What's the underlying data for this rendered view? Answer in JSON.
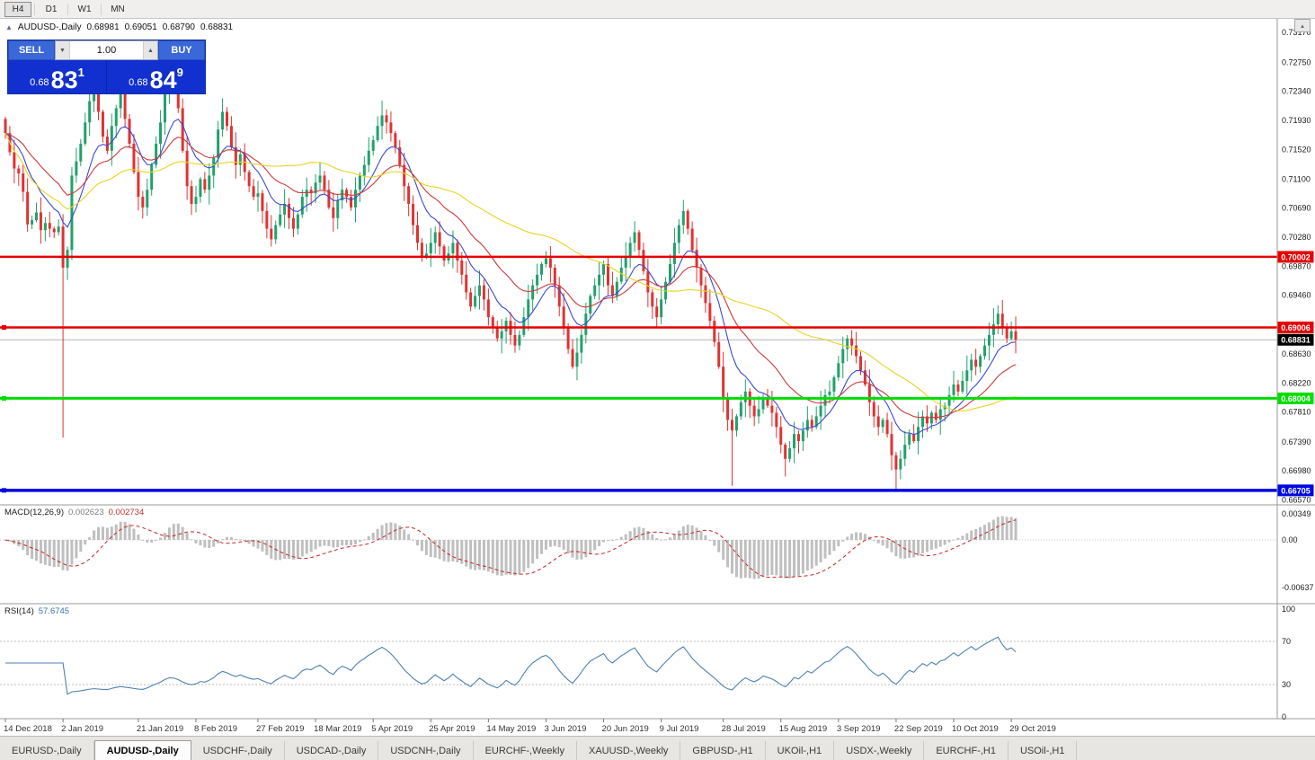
{
  "toolbar": {
    "buttons": [
      {
        "label": "H4",
        "active": true
      },
      {
        "label": "D1",
        "active": false
      },
      {
        "label": "W1",
        "active": false
      },
      {
        "label": "MN",
        "active": false
      }
    ]
  },
  "chart_header": {
    "collapse_icon": "▲",
    "symbol": "AUDUSD-,Daily",
    "open": "0.68981",
    "high": "0.69051",
    "low": "0.68790",
    "close": "0.68831"
  },
  "one_click": {
    "sell_label": "SELL",
    "buy_label": "BUY",
    "volume": "1.00",
    "down_icon": "▼",
    "up_icon": "▲",
    "sell_price_small": "0.68",
    "sell_price_big": "83",
    "sell_price_sup": "1",
    "buy_price_small": "0.68",
    "buy_price_big": "84",
    "buy_price_sup": "9"
  },
  "misc": {
    "mini_arrow": "▴"
  },
  "tabs": [
    {
      "label": "EURUSD-,Daily",
      "active": false
    },
    {
      "label": "AUDUSD-,Daily",
      "active": true
    },
    {
      "label": "USDCHF-,Daily",
      "active": false
    },
    {
      "label": "USDCAD-,Daily",
      "active": false
    },
    {
      "label": "USDCNH-,Daily",
      "active": false
    },
    {
      "label": "EURCHF-,Weekly",
      "active": false
    },
    {
      "label": "XAUUSD-,Weekly",
      "active": false
    },
    {
      "label": "GBPUSD-,H1",
      "active": false
    },
    {
      "label": "UKOil-,H1",
      "active": false
    },
    {
      "label": "USDX-,Weekly",
      "active": false
    },
    {
      "label": "EURCHF-,H1",
      "active": false
    },
    {
      "label": "USOil-,H1",
      "active": false
    }
  ],
  "chart_data": {
    "type": "candlestick",
    "symbol": "AUDUSD",
    "period": "Daily",
    "ylim": [
      0.665,
      0.7335
    ],
    "y_axis_labels": [
      "0.73170",
      "0.72750",
      "0.72340",
      "0.71930",
      "0.71520",
      "0.71100",
      "0.70690",
      "0.70280",
      "0.69870",
      "0.69460",
      "0.69040",
      "0.68630",
      "0.68220",
      "0.67810",
      "0.67390",
      "0.66980",
      "0.66570"
    ],
    "first_open": 0.7195,
    "closes": [
      0.7175,
      0.7148,
      0.7125,
      0.7118,
      0.7092,
      0.7046,
      0.7052,
      0.7063,
      0.7038,
      0.7048,
      0.704,
      0.7035,
      0.7043,
      0.6985,
      0.701,
      0.7115,
      0.7135,
      0.716,
      0.719,
      0.722,
      0.7235,
      0.7205,
      0.717,
      0.715,
      0.7185,
      0.721,
      0.723,
      0.7195,
      0.716,
      0.712,
      0.7085,
      0.707,
      0.7095,
      0.713,
      0.716,
      0.719,
      0.723,
      0.7255,
      0.725,
      0.721,
      0.715,
      0.71,
      0.7075,
      0.7085,
      0.711,
      0.7095,
      0.7115,
      0.714,
      0.718,
      0.7205,
      0.7185,
      0.7155,
      0.713,
      0.7145,
      0.712,
      0.71,
      0.7085,
      0.709,
      0.7065,
      0.704,
      0.7025,
      0.7045,
      0.706,
      0.7075,
      0.7055,
      0.704,
      0.706,
      0.7085,
      0.7095,
      0.709,
      0.7105,
      0.7115,
      0.7095,
      0.707,
      0.7055,
      0.708,
      0.7095,
      0.7085,
      0.707,
      0.7095,
      0.7115,
      0.713,
      0.715,
      0.7165,
      0.7185,
      0.72,
      0.719,
      0.7175,
      0.7155,
      0.713,
      0.71,
      0.7075,
      0.7045,
      0.702,
      0.7,
      0.7005,
      0.702,
      0.7035,
      0.7015,
      0.6995,
      0.7005,
      0.702,
      0.6995,
      0.6975,
      0.695,
      0.693,
      0.6945,
      0.696,
      0.694,
      0.6915,
      0.69,
      0.6885,
      0.6895,
      0.691,
      0.689,
      0.6875,
      0.689,
      0.6915,
      0.694,
      0.696,
      0.6975,
      0.699,
      0.6998,
      0.6985,
      0.696,
      0.693,
      0.69,
      0.687,
      0.6845,
      0.6865,
      0.689,
      0.692,
      0.6945,
      0.696,
      0.6975,
      0.699,
      0.696,
      0.6945,
      0.6965,
      0.6985,
      0.7,
      0.702,
      0.7035,
      0.701,
      0.698,
      0.695,
      0.693,
      0.6915,
      0.694,
      0.6965,
      0.699,
      0.702,
      0.7045,
      0.7065,
      0.704,
      0.701,
      0.6985,
      0.696,
      0.6935,
      0.691,
      0.688,
      0.6845,
      0.68,
      0.677,
      0.6755,
      0.6775,
      0.6795,
      0.681,
      0.679,
      0.6775,
      0.6785,
      0.68,
      0.679,
      0.678,
      0.676,
      0.6735,
      0.6715,
      0.673,
      0.675,
      0.674,
      0.6755,
      0.677,
      0.676,
      0.6775,
      0.679,
      0.6805,
      0.681,
      0.683,
      0.685,
      0.687,
      0.6885,
      0.6875,
      0.686,
      0.684,
      0.682,
      0.6795,
      0.6775,
      0.676,
      0.677,
      0.675,
      0.672,
      0.67,
      0.6715,
      0.6735,
      0.675,
      0.674,
      0.676,
      0.6775,
      0.6765,
      0.678,
      0.677,
      0.6785,
      0.679,
      0.6805,
      0.682,
      0.681,
      0.6825,
      0.684,
      0.6855,
      0.6845,
      0.686,
      0.6875,
      0.689,
      0.6905,
      0.692,
      0.69,
      0.6885,
      0.6895,
      0.68831
    ],
    "wick_overrides": {
      "13": {
        "low": 0.6745
      },
      "37": {
        "high": 0.7268
      },
      "164": {
        "low": 0.6677
      },
      "176": {
        "low": 0.669
      },
      "201": {
        "low": 0.667
      },
      "223": {
        "high": 0.6928
      }
    },
    "colors": {
      "up": "#22a06b",
      "down": "#e03232",
      "ma_fast": "#3a49cf",
      "ma_mid": "#cc3a3a",
      "ma_slow": "#e8d41e",
      "macd_hist": "#bfbfbf",
      "macd_signal": "#cc2222",
      "rsi": "#4f81b0"
    },
    "moving_averages": [
      {
        "type": "ema",
        "period": 10,
        "color_key": "ma_fast"
      },
      {
        "type": "ema",
        "period": 24,
        "color_key": "ma_mid"
      },
      {
        "type": "sma",
        "period": 55,
        "color_key": "ma_slow"
      }
    ],
    "hlines": [
      {
        "price": 0.70002,
        "label": "0.70002",
        "color": "#e60000",
        "thickness": 2.5,
        "marker": false
      },
      {
        "price": 0.69006,
        "label": "0.69006",
        "color": "#e60000",
        "thickness": 2.5,
        "marker": true
      },
      {
        "price": 0.68004,
        "label": "0.68004",
        "color": "#00dd00",
        "thickness": 3,
        "marker": true
      },
      {
        "price": 0.66705,
        "label": "0.66705",
        "color": "#0008e0",
        "thickness": 3.5,
        "marker": true
      }
    ],
    "current_price": {
      "value": 0.68831,
      "label": "0.68831",
      "line_color": "#b4b4b4",
      "box_color": "#000000"
    },
    "x_ticks": [
      {
        "label": "14 Dec 2018",
        "bar": 0
      },
      {
        "label": "2 Jan 2019",
        "bar": 13
      },
      {
        "label": "21 Jan 2019",
        "bar": 30
      },
      {
        "label": "8 Feb 2019",
        "bar": 43
      },
      {
        "label": "27 Feb 2019",
        "bar": 57
      },
      {
        "label": "18 Mar 2019",
        "bar": 70
      },
      {
        "label": "5 Apr 2019",
        "bar": 83
      },
      {
        "label": "25 Apr 2019",
        "bar": 96
      },
      {
        "label": "14 May 2019",
        "bar": 109
      },
      {
        "label": "3 Jun 2019",
        "bar": 122
      },
      {
        "label": "20 Jun 2019",
        "bar": 135
      },
      {
        "label": "9 Jul 2019",
        "bar": 148
      },
      {
        "label": "28 Jul 2019",
        "bar": 162
      },
      {
        "label": "15 Aug 2019",
        "bar": 175
      },
      {
        "label": "3 Sep 2019",
        "bar": 188
      },
      {
        "label": "22 Sep 2019",
        "bar": 201
      },
      {
        "label": "10 Oct 2019",
        "bar": 214
      },
      {
        "label": "29 Oct 2019",
        "bar": 227
      }
    ],
    "macd": {
      "title": "MACD(12,26,9)",
      "value_main": "0.002623",
      "value_signal": "0.002734",
      "fast": 12,
      "slow": 26,
      "signal": 9,
      "axis_labels": [
        {
          "text": "0.00349",
          "value": 0.00349
        },
        {
          "text": "0.00",
          "value": 0
        },
        {
          "text": "-0.00637",
          "value": -0.00637
        }
      ]
    },
    "rsi": {
      "title": "RSI(14)",
      "value": "57.6745",
      "period": 14,
      "levels": [
        70,
        30
      ],
      "axis_labels": [
        {
          "text": "100",
          "value": 100
        },
        {
          "text": "70",
          "value": 70
        },
        {
          "text": "30",
          "value": 30
        },
        {
          "text": "0",
          "value": 0
        }
      ]
    }
  }
}
